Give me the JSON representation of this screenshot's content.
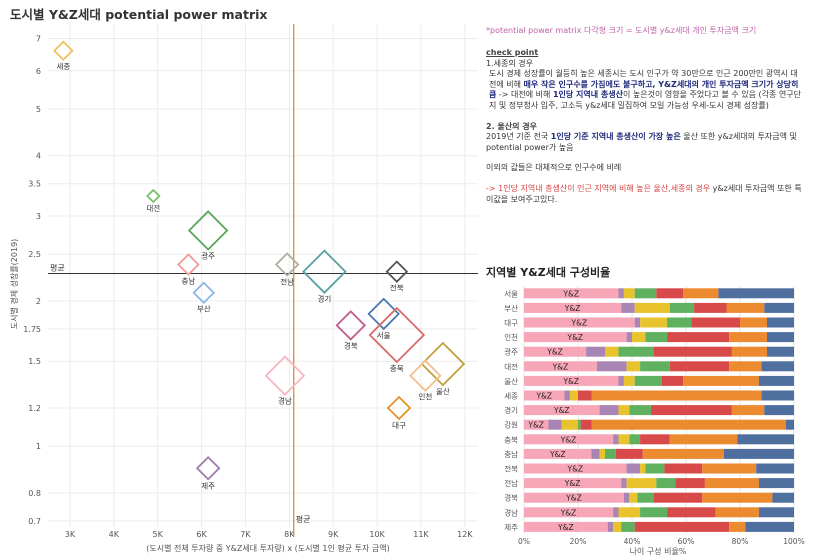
{
  "title": "도시별 Y&Z세대 potential power matrix",
  "note": "*potential power matrix 다각형 크기 = 도시별 y&z세대 개인 투자금액 크기",
  "check_point": {
    "heading": "check point",
    "sejong_title": "1.세종의 경우",
    "sejong_p1": "도시 경제 성장률이 월등히 높은 세종시는 도시 인구가 약 30만으로 인근 200만인 광역시 대전에 비해 ",
    "sejong_bold": "매우 작은 인구수를 가짐에도 불구하고, Y&Z세대의 개인 투자금액 크기가 상당히 큼",
    "sejong_p2": " -> 대전에 비해 ",
    "sejong_bold2": "1인당 지역내 총생산",
    "sejong_p3": "이 높은것이 영향을 주었다고 볼 수 있음 (각종 연구단지 및 정부청사 입주, 고소득 y&z세대 밀집하여 모일 가능성 우세-도시 경제 성장률)",
    "ulsan_title": "2. 울산의 경우",
    "ulsan_p1": "2019년 기준 전국 ",
    "ulsan_bold": "1인당 기준 지역내 총생산이 가장 높은",
    "ulsan_p2": " 울산 또한 y&z세대의 투자금액 및 potential power가 높음",
    "others": "이외의 값들은 대체적으로 인구수에 비례",
    "conclusion_red": "-> 1인당 지역내 총생산이 인근 지역에 비해 높은 울산,세종의 경우",
    "conclusion_rest": " y&z세대 투자금액 또한 특이값을 보여주고있다."
  },
  "bar_title": "지역별 Y&Z세대 구성비율",
  "chart_data": [
    {
      "type": "scatter",
      "title": "도시별 Y&Z세대 potential power matrix",
      "xlabel": "(도시별 전체 투자량 중 Y&Z세대 투자량) x (도시별 1인 평균 투자 금액)",
      "ylabel": "도시별 경제 성장률(2019)",
      "x_scale": "linear",
      "y_scale": "log",
      "xlim": [
        2500,
        12300
      ],
      "ylim": [
        0.68,
        7.5
      ],
      "x_ticks": [
        3000,
        4000,
        5000,
        6000,
        7000,
        8000,
        9000,
        10000,
        11000,
        12000
      ],
      "x_tick_labels": [
        "3K",
        "4K",
        "5K",
        "6K",
        "7K",
        "8K",
        "9K",
        "10K",
        "11K",
        "12K"
      ],
      "y_ticks": [
        0.7,
        0.8,
        1,
        1.2,
        1.5,
        1.75,
        2,
        2.5,
        3,
        3.5,
        4,
        5,
        6,
        7
      ],
      "y_tick_labels": [
        "0.7",
        "0.8",
        "1",
        "1.2",
        "1.5",
        "1.75",
        "2",
        "2.5",
        "3",
        "3.5",
        "4",
        "5",
        "6",
        "7"
      ],
      "reference_lines": {
        "x_mean": 8100,
        "y_mean": 2.28,
        "x_label": "평균",
        "y_label": "평균"
      },
      "points": [
        {
          "name": "세종",
          "x": 2850,
          "y": 6.6,
          "size": 9,
          "color": "#f0c060",
          "label_pos": "below"
        },
        {
          "name": "대전",
          "x": 4900,
          "y": 3.3,
          "size": 6,
          "color": "#7cc06a",
          "label_pos": "below"
        },
        {
          "name": "광주",
          "x": 6150,
          "y": 2.8,
          "size": 19,
          "color": "#5aa55a",
          "label_pos": "below"
        },
        {
          "name": "충남",
          "x": 5700,
          "y": 2.38,
          "size": 10,
          "color": "#f39a9a",
          "label_pos": "below"
        },
        {
          "name": "부산",
          "x": 6050,
          "y": 2.08,
          "size": 10,
          "color": "#8ab4e8",
          "label_pos": "below"
        },
        {
          "name": "전남",
          "x": 7950,
          "y": 2.38,
          "size": 11,
          "color": "#b0b0a0",
          "label_pos": "below"
        },
        {
          "name": "경기",
          "x": 8800,
          "y": 2.3,
          "size": 21,
          "color": "#5aa0a0",
          "label_pos": "below"
        },
        {
          "name": "전북",
          "x": 10450,
          "y": 2.3,
          "size": 10,
          "color": "#555555",
          "label_pos": "below"
        },
        {
          "name": "서울",
          "x": 10150,
          "y": 1.88,
          "size": 15,
          "color": "#4a78b0",
          "label_pos": "below"
        },
        {
          "name": "경북",
          "x": 9400,
          "y": 1.78,
          "size": 14,
          "color": "#c25a8c",
          "label_pos": "below"
        },
        {
          "name": "충북",
          "x": 10450,
          "y": 1.7,
          "size": 27,
          "color": "#d96a6a",
          "label_pos": "below"
        },
        {
          "name": "울산",
          "x": 11500,
          "y": 1.48,
          "size": 21,
          "color": "#c2a040",
          "label_pos": "below"
        },
        {
          "name": "인천",
          "x": 11100,
          "y": 1.4,
          "size": 15,
          "color": "#f2c090",
          "label_pos": "below"
        },
        {
          "name": "경남",
          "x": 7900,
          "y": 1.4,
          "size": 19,
          "color": "#f5b8c0",
          "label_pos": "below"
        },
        {
          "name": "대구",
          "x": 10500,
          "y": 1.2,
          "size": 11,
          "color": "#e8902a",
          "label_pos": "below"
        },
        {
          "name": "제주",
          "x": 6150,
          "y": 0.9,
          "size": 11,
          "color": "#a07ab0",
          "label_pos": "below"
        }
      ],
      "xlim_label_x_mean": "평균"
    },
    {
      "type": "bar",
      "stacked": true,
      "orientation": "horizontal",
      "title": "지역별 Y&Z세대 구성비율",
      "xlabel": "나이 구성 비율%",
      "x_ticks": [
        "0%",
        "20%",
        "40%",
        "60%",
        "80%",
        "100%"
      ],
      "segment_colors": [
        "#f7a6b8",
        "#a985b5",
        "#e8c32e",
        "#5fb05f",
        "#d84a4a",
        "#ec8a30",
        "#4f6f9f"
      ],
      "segment_label": "Y&Z",
      "categories": [
        "서울",
        "부산",
        "대구",
        "인천",
        "광주",
        "대전",
        "울산",
        "세종",
        "경기",
        "강원",
        "충북",
        "충남",
        "전북",
        "전남",
        "경북",
        "경남",
        "제주"
      ],
      "series_values_percent": [
        [
          35,
          2,
          4,
          8,
          10,
          13,
          28
        ],
        [
          36,
          5,
          13,
          9,
          12,
          14,
          11
        ],
        [
          41,
          2,
          10,
          9,
          18,
          10,
          10
        ],
        [
          38,
          2,
          5,
          8,
          23,
          14,
          10
        ],
        [
          23,
          7,
          5,
          13,
          29,
          13,
          10
        ],
        [
          27,
          11,
          5,
          11,
          22,
          12,
          12
        ],
        [
          35,
          2,
          4,
          10,
          8,
          28,
          13
        ],
        [
          15,
          2,
          3,
          0,
          5,
          63,
          12
        ],
        [
          28,
          7,
          4,
          8,
          30,
          12,
          11
        ],
        [
          9,
          5,
          6,
          1,
          4,
          72,
          3
        ],
        [
          33,
          2,
          4,
          4,
          11,
          25,
          21
        ],
        [
          25,
          3,
          2,
          4,
          10,
          30,
          26
        ],
        [
          38,
          5,
          2,
          7,
          14,
          20,
          14
        ],
        [
          36,
          2,
          11,
          7,
          11,
          20,
          13
        ],
        [
          37,
          2,
          3,
          6,
          18,
          26,
          8
        ],
        [
          33,
          2,
          8,
          10,
          18,
          16,
          13
        ],
        [
          31,
          2,
          3,
          5,
          35,
          6,
          18
        ]
      ]
    }
  ]
}
